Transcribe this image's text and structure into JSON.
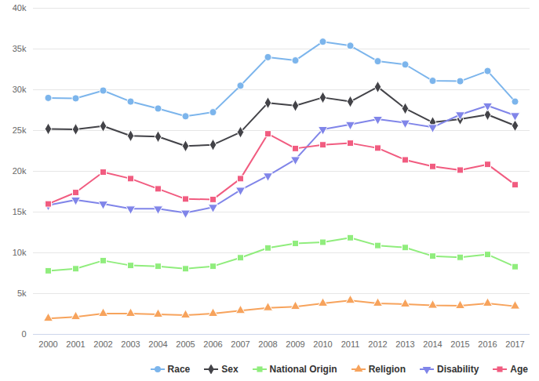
{
  "chart_data": {
    "type": "line",
    "categories": [
      "2000",
      "2001",
      "2002",
      "2003",
      "2004",
      "2005",
      "2006",
      "2007",
      "2008",
      "2009",
      "2010",
      "2011",
      "2012",
      "2013",
      "2014",
      "2015",
      "2016",
      "2017"
    ],
    "series": [
      {
        "name": "Race",
        "color": "#7cb5ec",
        "marker": "circle",
        "values": [
          29000,
          28950,
          29900,
          28550,
          27700,
          26750,
          27250,
          30500,
          34000,
          33600,
          35900,
          35400,
          33500,
          33100,
          31100,
          31050,
          32300,
          28550
        ]
      },
      {
        "name": "Sex",
        "color": "#434348",
        "marker": "diamond",
        "values": [
          25200,
          25150,
          25550,
          24350,
          24250,
          23100,
          23250,
          24800,
          28400,
          28050,
          29050,
          28550,
          30350,
          27700,
          26000,
          26400,
          26950,
          25600
        ]
      },
      {
        "name": "National Origin",
        "color": "#90ed7d",
        "marker": "square",
        "values": [
          7800,
          8050,
          9050,
          8450,
          8350,
          8050,
          8350,
          9400,
          10600,
          11150,
          11300,
          11850,
          10900,
          10650,
          9600,
          9450,
          9800,
          8300
        ]
      },
      {
        "name": "Religion",
        "color": "#f7a35c",
        "marker": "triangle",
        "values": [
          1950,
          2150,
          2550,
          2550,
          2450,
          2350,
          2550,
          2900,
          3250,
          3400,
          3800,
          4150,
          3800,
          3700,
          3550,
          3500,
          3800,
          3450
        ]
      },
      {
        "name": "Disability",
        "color": "#8085e9",
        "marker": "triangle-down",
        "values": [
          15850,
          16500,
          16000,
          15400,
          15400,
          14900,
          15600,
          17700,
          19450,
          21450,
          25150,
          25750,
          26400,
          25950,
          25400,
          26950,
          28050,
          26850
        ]
      },
      {
        "name": "Age",
        "color": "#f15c80",
        "marker": "square",
        "values": [
          16000,
          17400,
          19900,
          19100,
          17850,
          16600,
          16550,
          19100,
          24600,
          22800,
          23250,
          23450,
          22850,
          21400,
          20600,
          20150,
          20850,
          18350
        ]
      }
    ],
    "ylim": [
      0,
      40000
    ],
    "yticks": [
      0,
      {
        "value": 5000,
        "label": "5k"
      },
      {
        "value": 10000,
        "label": "10k"
      },
      {
        "value": 15000,
        "label": "15k"
      },
      {
        "value": 20000,
        "label": "20k"
      },
      {
        "value": 25000,
        "label": "25k"
      },
      {
        "value": 30000,
        "label": "30k"
      },
      {
        "value": 35000,
        "label": "35k"
      },
      {
        "value": 40000,
        "label": "40k"
      }
    ],
    "grid": true,
    "legend": "bottom"
  }
}
